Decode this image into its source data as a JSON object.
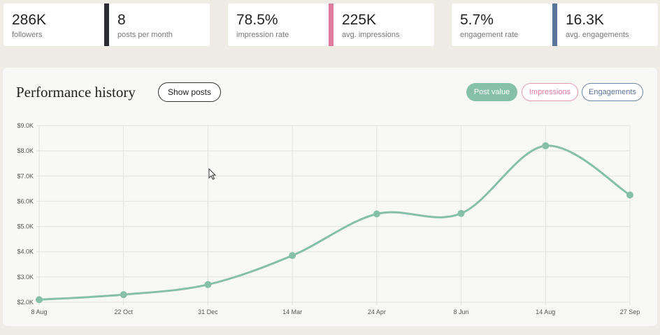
{
  "stats": [
    {
      "value": "286K",
      "label": "followers"
    },
    {
      "value": "8",
      "label": "posts per month"
    },
    {
      "value": "78.5%",
      "label": "impression rate"
    },
    {
      "value": "225K",
      "label": "avg. impressions"
    },
    {
      "value": "5.7%",
      "label": "engagement rate"
    },
    {
      "value": "16.3K",
      "label": "avg. engagements"
    }
  ],
  "colors": {
    "dark": "#2b2b33",
    "pink": "#e07c9b",
    "blue": "#5b7499",
    "teal": "#86bfaa"
  },
  "panel": {
    "title": "Performance history",
    "show_posts_label": "Show posts",
    "filters": {
      "post_value": "Post value",
      "impressions": "Impressions",
      "engagements": "Engagements"
    }
  },
  "chart_data": {
    "type": "line",
    "title": "Performance history",
    "categories": [
      "8 Aug",
      "22 Oct",
      "31 Dec",
      "14 Mar",
      "24 Apr",
      "8 Jun",
      "14 Aug",
      "27 Sep"
    ],
    "series": [
      {
        "name": "Post value",
        "values": [
          2100,
          2300,
          2700,
          3850,
          5500,
          5520,
          8200,
          6250
        ]
      }
    ],
    "y_ticks": [
      "$2.0K",
      "$3.0K",
      "$4.0K",
      "$5.0K",
      "$6.0K",
      "$7.0K",
      "$8.0K",
      "$9.0K"
    ],
    "ylim": [
      2000,
      9000
    ],
    "grid": true
  }
}
